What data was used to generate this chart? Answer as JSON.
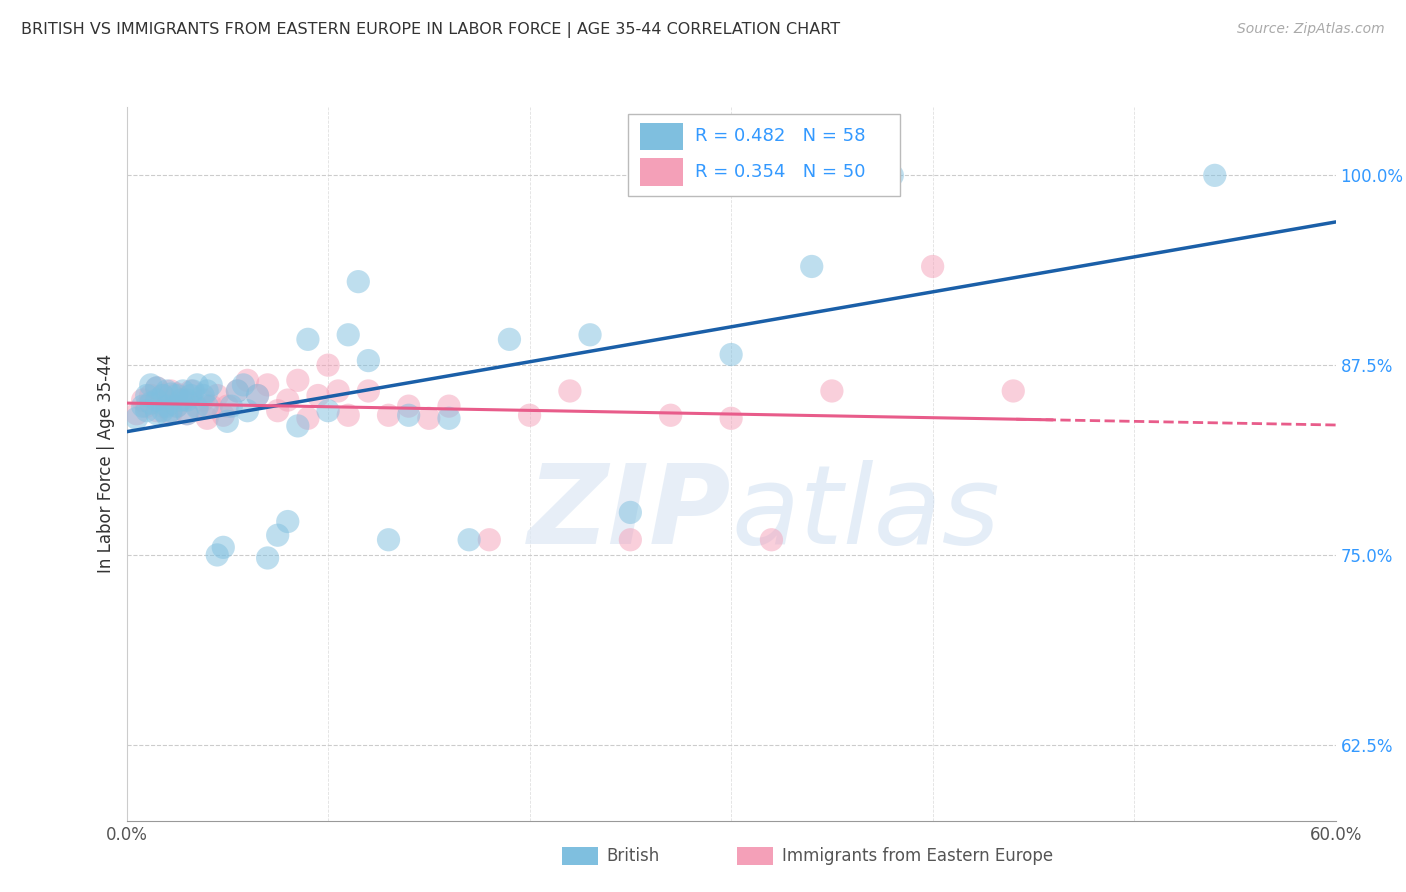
{
  "title": "BRITISH VS IMMIGRANTS FROM EASTERN EUROPE IN LABOR FORCE | AGE 35-44 CORRELATION CHART",
  "source": "Source: ZipAtlas.com",
  "ylabel": "In Labor Force | Age 35-44",
  "y_ticks": [
    0.625,
    0.75,
    0.875,
    1.0
  ],
  "x_ticks": [
    0.0,
    0.1,
    0.2,
    0.3,
    0.4,
    0.5,
    0.6
  ],
  "blue_R": 0.482,
  "blue_N": 58,
  "pink_R": 0.354,
  "pink_N": 50,
  "blue_color": "#7fbfdf",
  "pink_color": "#f4a0b8",
  "blue_line_color": "#1a5fa8",
  "pink_line_color": "#e85c8a",
  "legend_label_blue": "British",
  "legend_label_pink": "Immigrants from Eastern Europe",
  "watermark_zip": "ZIP",
  "watermark_atlas": "atlas",
  "blue_scatter_x": [
    0.005,
    0.008,
    0.01,
    0.01,
    0.012,
    0.012,
    0.015,
    0.015,
    0.015,
    0.018,
    0.018,
    0.02,
    0.02,
    0.02,
    0.022,
    0.022,
    0.025,
    0.025,
    0.027,
    0.028,
    0.03,
    0.03,
    0.032,
    0.033,
    0.035,
    0.035,
    0.038,
    0.04,
    0.04,
    0.042,
    0.045,
    0.048,
    0.05,
    0.052,
    0.055,
    0.058,
    0.06,
    0.065,
    0.07,
    0.075,
    0.08,
    0.085,
    0.09,
    0.1,
    0.11,
    0.115,
    0.12,
    0.13,
    0.14,
    0.16,
    0.17,
    0.19,
    0.23,
    0.25,
    0.3,
    0.34,
    0.38,
    0.54
  ],
  "blue_scatter_y": [
    0.84,
    0.848,
    0.845,
    0.855,
    0.85,
    0.862,
    0.843,
    0.852,
    0.86,
    0.845,
    0.855,
    0.842,
    0.848,
    0.858,
    0.845,
    0.856,
    0.848,
    0.855,
    0.852,
    0.858,
    0.843,
    0.852,
    0.855,
    0.858,
    0.847,
    0.862,
    0.855,
    0.848,
    0.858,
    0.862,
    0.75,
    0.755,
    0.838,
    0.848,
    0.858,
    0.862,
    0.845,
    0.855,
    0.748,
    0.763,
    0.772,
    0.835,
    0.892,
    0.845,
    0.895,
    0.93,
    0.878,
    0.76,
    0.842,
    0.84,
    0.76,
    0.892,
    0.895,
    0.778,
    0.882,
    0.94,
    1.0,
    1.0
  ],
  "pink_scatter_x": [
    0.005,
    0.008,
    0.01,
    0.012,
    0.015,
    0.015,
    0.018,
    0.018,
    0.02,
    0.022,
    0.022,
    0.025,
    0.025,
    0.028,
    0.03,
    0.032,
    0.035,
    0.038,
    0.04,
    0.042,
    0.045,
    0.048,
    0.05,
    0.055,
    0.06,
    0.065,
    0.07,
    0.075,
    0.08,
    0.085,
    0.09,
    0.095,
    0.1,
    0.105,
    0.11,
    0.12,
    0.13,
    0.14,
    0.15,
    0.16,
    0.18,
    0.2,
    0.22,
    0.25,
    0.27,
    0.3,
    0.32,
    0.35,
    0.4,
    0.44
  ],
  "pink_scatter_y": [
    0.843,
    0.852,
    0.848,
    0.855,
    0.845,
    0.86,
    0.848,
    0.855,
    0.852,
    0.843,
    0.858,
    0.848,
    0.856,
    0.852,
    0.843,
    0.858,
    0.848,
    0.852,
    0.84,
    0.848,
    0.855,
    0.842,
    0.848,
    0.858,
    0.865,
    0.855,
    0.862,
    0.845,
    0.852,
    0.865,
    0.84,
    0.855,
    0.875,
    0.858,
    0.842,
    0.858,
    0.842,
    0.848,
    0.84,
    0.848,
    0.76,
    0.842,
    0.858,
    0.76,
    0.842,
    0.84,
    0.76,
    0.858,
    0.94,
    0.858
  ]
}
